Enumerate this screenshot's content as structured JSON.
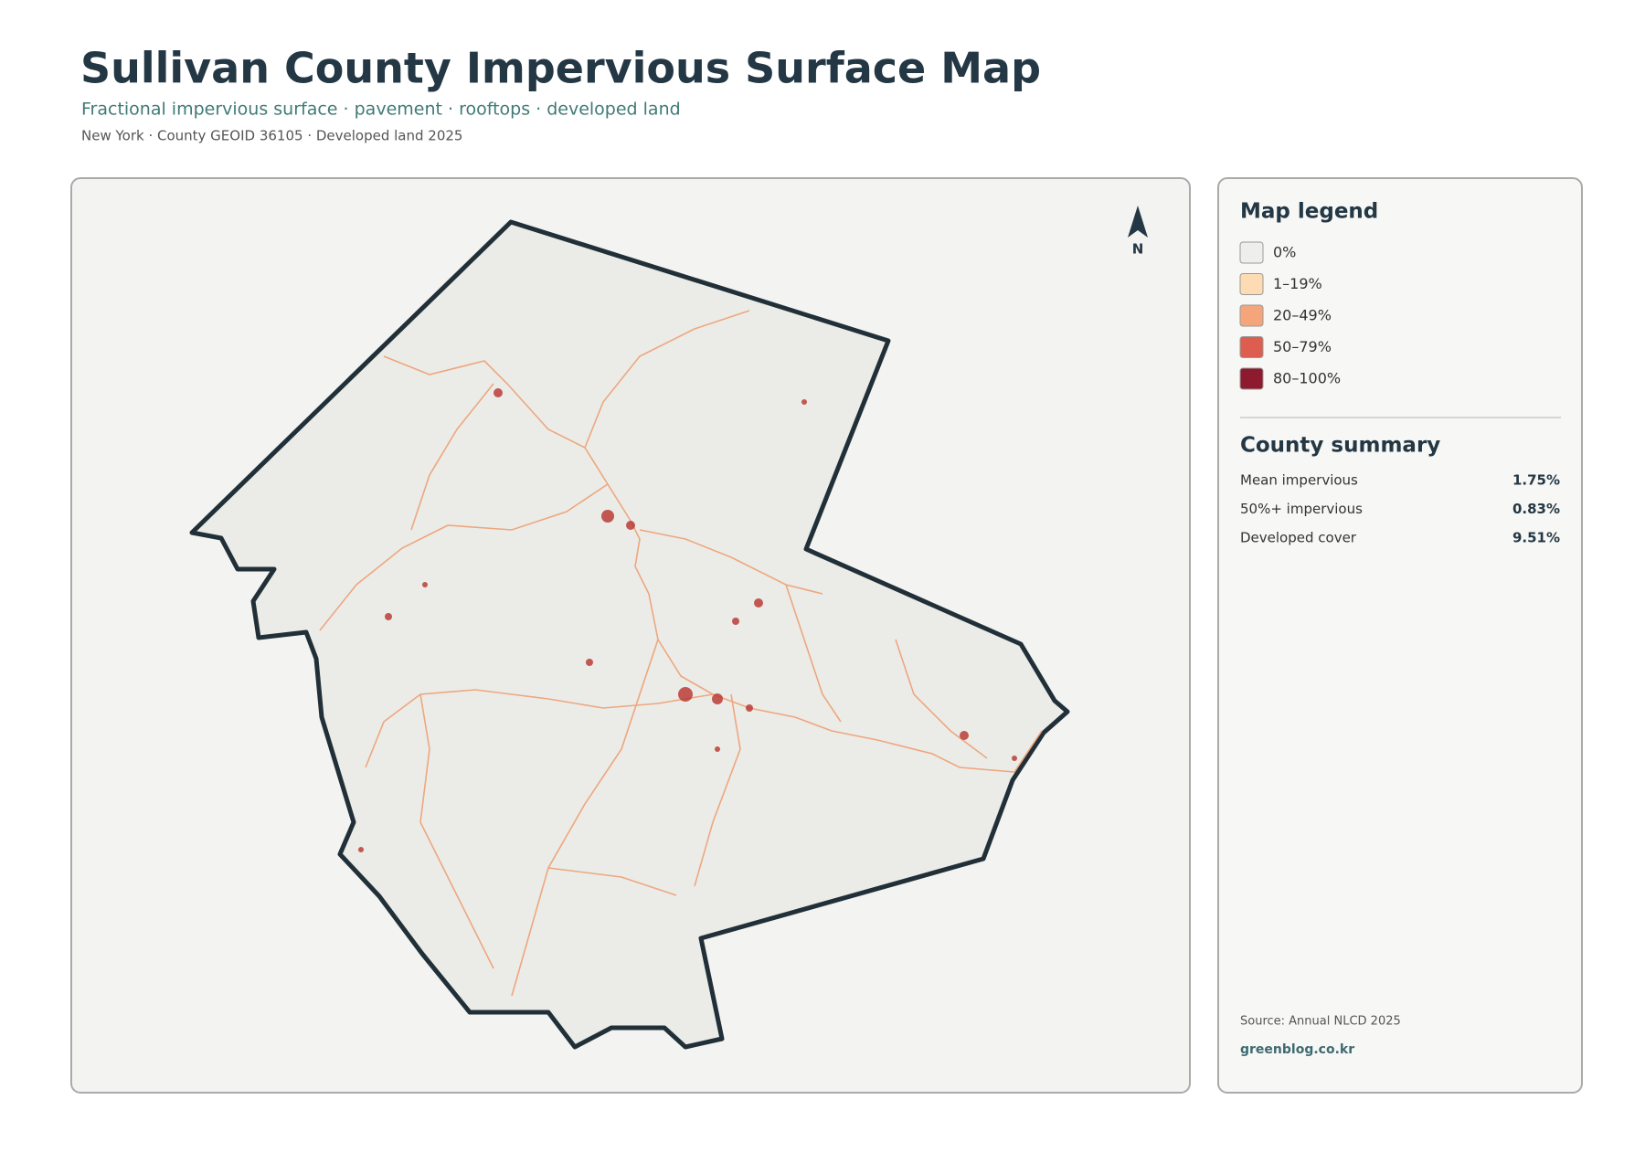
{
  "header": {
    "title": "Sullivan County Impervious Surface Map",
    "subtitle": "Fractional impervious surface · pavement · rooftops · developed land",
    "meta": "New York · County GEOID 36105 · Developed land 2025"
  },
  "map": {
    "north_label": "N"
  },
  "legend": {
    "title": "Map legend",
    "items": [
      {
        "label": "0%",
        "color": "#eeeeea"
      },
      {
        "label": "1–19%",
        "color": "#fddcb4"
      },
      {
        "label": "20–49%",
        "color": "#f5a57a"
      },
      {
        "label": "50–79%",
        "color": "#dd5e4e"
      },
      {
        "label": "80–100%",
        "color": "#8e1a30"
      }
    ]
  },
  "summary": {
    "title": "County summary",
    "rows": [
      [
        "Mean impervious",
        "1.75%"
      ],
      [
        "50%+ impervious",
        "0.83%"
      ],
      [
        "Developed cover",
        "9.51%"
      ]
    ]
  },
  "footer": {
    "source": "Source: Annual NLCD 2025",
    "credit": "greenblog.co.kr"
  }
}
